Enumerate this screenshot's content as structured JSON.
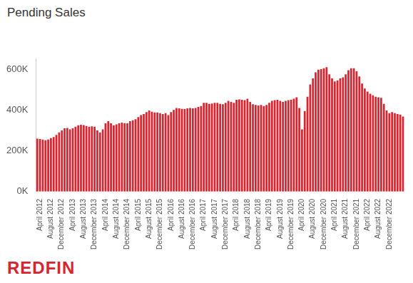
{
  "chart_data": {
    "type": "bar",
    "title": "Pending Sales",
    "categories": [
      null,
      "April 2012",
      null,
      null,
      null,
      "August 2012",
      null,
      null,
      null,
      "December 2012",
      null,
      null,
      null,
      "April 2013",
      null,
      null,
      null,
      "August 2013",
      null,
      null,
      null,
      "December 2013",
      null,
      null,
      null,
      "April 2014",
      null,
      null,
      null,
      "August 2014",
      null,
      null,
      null,
      "December 2014",
      null,
      null,
      null,
      "April 2015",
      null,
      null,
      null,
      "August 2015",
      null,
      null,
      null,
      "December 2015",
      null,
      null,
      null,
      "April 2016",
      null,
      null,
      null,
      "August 2016",
      null,
      null,
      null,
      "December 2016",
      null,
      null,
      null,
      "April 2017",
      null,
      null,
      null,
      "August 2017",
      null,
      null,
      null,
      "December 2017",
      null,
      null,
      null,
      "April 2018",
      null,
      null,
      null,
      "August 2018",
      null,
      null,
      null,
      "December 2018",
      null,
      null,
      null,
      "April 2019",
      null,
      null,
      null,
      "August 2019",
      null,
      null,
      null,
      "December 2019",
      null,
      null,
      null,
      "April 2020",
      null,
      null,
      null,
      "August 2020",
      null,
      null,
      null,
      "December 2020",
      null,
      null,
      null,
      "April 2021",
      null,
      null,
      null,
      "August 2021",
      null,
      null,
      null,
      "December 2021",
      null,
      null,
      null,
      "April 2022",
      null,
      null,
      null,
      "August 2022",
      null,
      null,
      null,
      "December 2022",
      null,
      null,
      null,
      null,
      null
    ],
    "values": [
      260000,
      258000,
      255000,
      252000,
      255000,
      262000,
      268000,
      278000,
      290000,
      300000,
      310000,
      312000,
      305000,
      310000,
      318000,
      325000,
      328000,
      326000,
      322000,
      318000,
      320000,
      318000,
      300000,
      290000,
      305000,
      335000,
      345000,
      335000,
      325000,
      330000,
      335000,
      338000,
      336000,
      335000,
      345000,
      350000,
      355000,
      365000,
      375000,
      380000,
      390000,
      398000,
      392000,
      388000,
      388000,
      385000,
      380000,
      385000,
      375000,
      390000,
      400000,
      410000,
      408000,
      406000,
      405000,
      408000,
      410000,
      408000,
      410000,
      415000,
      420000,
      435000,
      435000,
      430000,
      432000,
      435000,
      435000,
      430000,
      428000,
      435000,
      445000,
      440000,
      435000,
      450000,
      452000,
      450000,
      448000,
      455000,
      440000,
      428000,
      425000,
      422000,
      425000,
      420000,
      425000,
      435000,
      445000,
      448000,
      450000,
      445000,
      440000,
      445000,
      448000,
      450000,
      455000,
      462000,
      410000,
      305000,
      395000,
      465000,
      525000,
      555000,
      585000,
      598000,
      600000,
      605000,
      610000,
      575000,
      555000,
      540000,
      545000,
      555000,
      560000,
      575000,
      595000,
      605000,
      605000,
      590000,
      565000,
      530000,
      505000,
      490000,
      480000,
      472000,
      465000,
      462000,
      460000,
      430000,
      398000,
      385000,
      390000,
      385000,
      380000,
      378000,
      368000
    ],
    "color": "#d7242f",
    "ylim": [
      0,
      650000
    ],
    "yticks": [
      {
        "value": 0,
        "label": "0K"
      },
      {
        "value": 200000,
        "label": "200K"
      },
      {
        "value": 400000,
        "label": "400K"
      },
      {
        "value": 600000,
        "label": "600K"
      }
    ],
    "grid": false
  },
  "logo": "REDFIN"
}
